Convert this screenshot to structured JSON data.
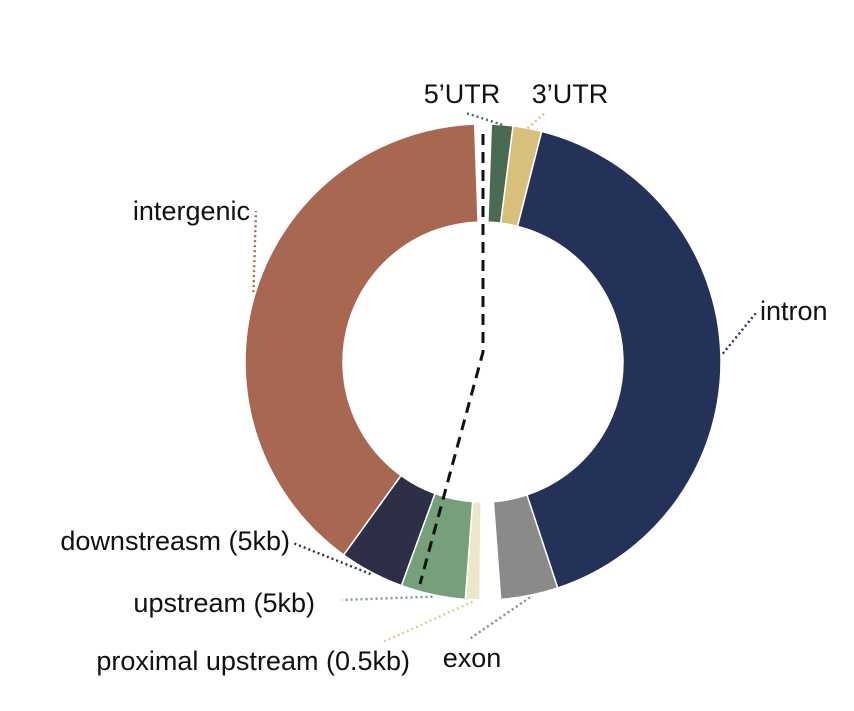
{
  "chart_data": {
    "type": "pie",
    "style": "donut",
    "title": "",
    "slices": [
      {
        "label": "5’UTR",
        "value": 1.5,
        "color": "#4a6a52"
      },
      {
        "label": "3’UTR",
        "value": 2.0,
        "color": "#d8bf7c"
      },
      {
        "label": "intron",
        "value": 42.0,
        "color": "#24325a"
      },
      {
        "label": "exon",
        "value": 4.0,
        "color": "#8a8a88"
      },
      {
        "label": "proximal upstream (0.5kb)",
        "value": 1.0,
        "color": "#ece7c8"
      },
      {
        "label": "upstream (5kb)",
        "value": 4.5,
        "color": "#76a07c"
      },
      {
        "label": "downstreasm (5kb)",
        "value": 4.5,
        "color": "#2c2f45"
      },
      {
        "label": "intergenic",
        "value": 40.5,
        "color": "#a86751"
      }
    ],
    "divider": "dashed line separating genic and non-genic categories",
    "legend": "none (direct labels with dotted leader lines)"
  }
}
